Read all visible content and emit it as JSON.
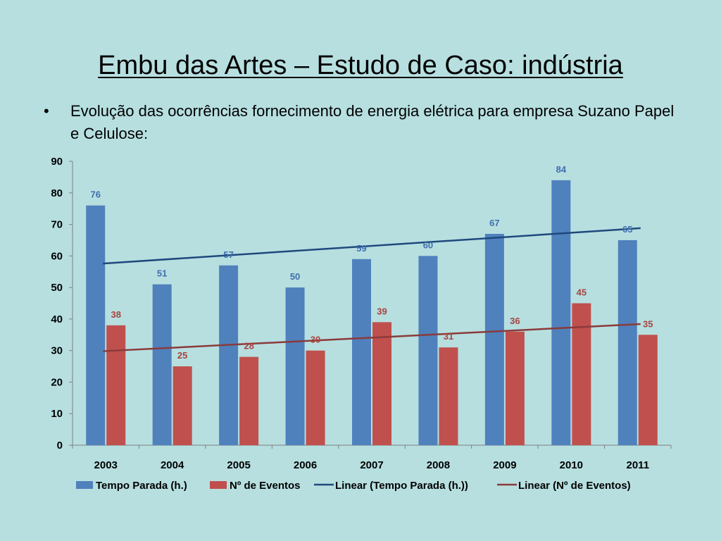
{
  "slide": {
    "title": "Embu das Artes – Estudo de Caso: indústria",
    "bullet_marker": "•",
    "bullet_text": "Evolução das ocorrências fornecimento de energia elétrica para empresa Suzano Papel e Celulose:"
  },
  "colors": {
    "background": "#b7dfe0",
    "blue_series": "#4f81bd",
    "red_series": "#c0504d",
    "blue_trend": "#1f497d",
    "red_trend": "#8b3a3a",
    "blue_label": "#3f6fae",
    "red_label": "#a8423f"
  },
  "chart_data": {
    "type": "bar",
    "categories": [
      "2003",
      "2004",
      "2005",
      "2006",
      "2007",
      "2008",
      "2009",
      "2010",
      "2011"
    ],
    "series": [
      {
        "name": "Tempo Parada (h.)",
        "values": [
          76,
          51,
          57,
          50,
          59,
          60,
          67,
          84,
          65
        ]
      },
      {
        "name": "Nº de Eventos",
        "values": [
          38,
          25,
          28,
          30,
          39,
          31,
          36,
          45,
          35
        ]
      }
    ],
    "trendlines": [
      {
        "name": "Linear (Tempo Parada (h.))",
        "of": "Tempo Parada (h.)",
        "start": 57.6,
        "end": 68.8
      },
      {
        "name": "Linear (Nº de Eventos)",
        "of": "Nº de Eventos",
        "start": 29.8,
        "end": 38.4
      }
    ],
    "ylim": [
      0,
      90
    ],
    "yticks": [
      0,
      10,
      20,
      30,
      40,
      50,
      60,
      70,
      80,
      90
    ],
    "grid": false,
    "legend_position": "bottom"
  }
}
